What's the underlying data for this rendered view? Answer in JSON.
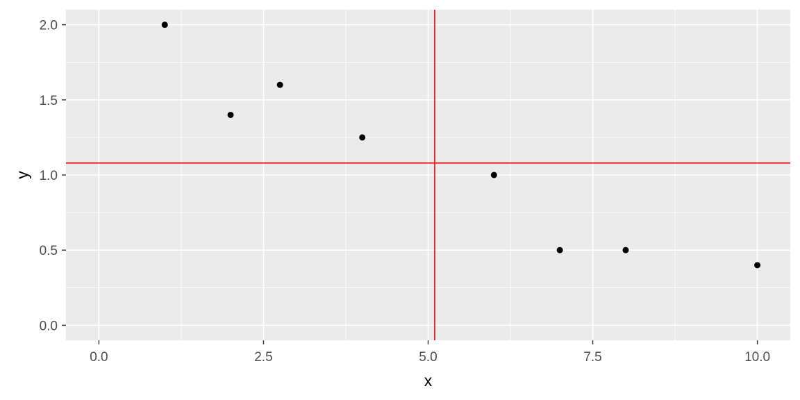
{
  "chart_data": {
    "type": "scatter",
    "xlabel": "x",
    "ylabel": "y",
    "xlim": [
      -0.5,
      10.5
    ],
    "ylim": [
      -0.1,
      2.1
    ],
    "x_ticks": [
      0,
      2.5,
      5,
      7.5,
      10
    ],
    "x_tick_labels": [
      "0.0",
      "2.5",
      "5.0",
      "7.5",
      "10.0"
    ],
    "y_ticks": [
      0,
      0.5,
      1,
      1.5,
      2
    ],
    "y_tick_labels": [
      "0.0",
      "0.5",
      "1.0",
      "1.5",
      "2.0"
    ],
    "x_minor_ticks": [
      1.25,
      3.75,
      6.25,
      8.75
    ],
    "y_minor_ticks": [
      0.25,
      0.75,
      1.25,
      1.75
    ],
    "grid": true,
    "points": [
      {
        "x": 1,
        "y": 2.0
      },
      {
        "x": 2,
        "y": 1.4
      },
      {
        "x": 2.75,
        "y": 1.6
      },
      {
        "x": 4,
        "y": 1.25
      },
      {
        "x": 6,
        "y": 1.0
      },
      {
        "x": 7,
        "y": 0.5
      },
      {
        "x": 8,
        "y": 0.5
      },
      {
        "x": 10,
        "y": 0.4
      }
    ],
    "vline": {
      "x": 5.1,
      "color": "#e31a1c"
    },
    "hline": {
      "y": 1.08,
      "color": "#e31a1c"
    },
    "point_color": "#000000",
    "panel_color": "#ebebeb"
  }
}
